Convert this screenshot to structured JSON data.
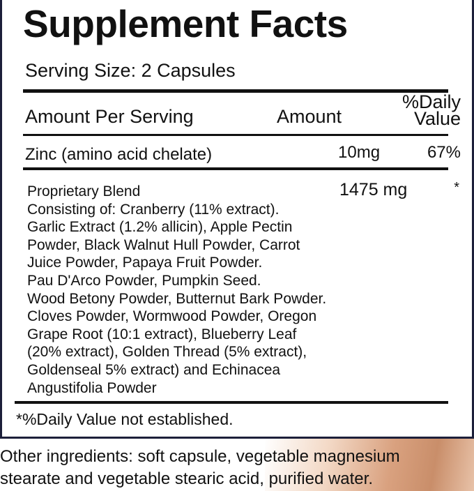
{
  "title": "Supplement Facts",
  "serving_size": "Serving Size: 2 Capsules",
  "header": {
    "amount_per_serving": "Amount Per Serving",
    "amount": "Amount",
    "daily_value_line1": "%Daily",
    "daily_value_line2": "Value"
  },
  "zinc": {
    "name": "Zinc (amino acid chelate)",
    "amount": "10mg",
    "dv": "67%"
  },
  "blend": {
    "name": "Proprietary Blend",
    "amount": "1475 mg",
    "dv": "*",
    "lines": [
      "Consisting of: Cranberry (11% extract).",
      "Garlic Extract (1.2% allicin), Apple Pectin",
      "Powder, Black Walnut Hull Powder, Carrot",
      "Juice Powder, Papaya Fruit Powder.",
      "Pau D'Arco Powder, Pumpkin Seed.",
      "Wood Betony Powder, Butternut Bark Powder.",
      "Cloves Powder, Wormwood Powder, Oregon",
      "Grape Root (10:1 extract), Blueberry Leaf",
      "(20% extract), Golden Thread (5% extract),",
      "Goldenseal 5% extract) and Echinacea",
      "Angustifolia Powder"
    ]
  },
  "footnote": "*%Daily Value not established.",
  "other_ingredients": [
    "Other ingredients: soft capsule, vegetable magnesium",
    "stearate and vegetable stearic acid, purified water."
  ],
  "colors": {
    "border": "#1c1f3a",
    "text": "#111111"
  }
}
